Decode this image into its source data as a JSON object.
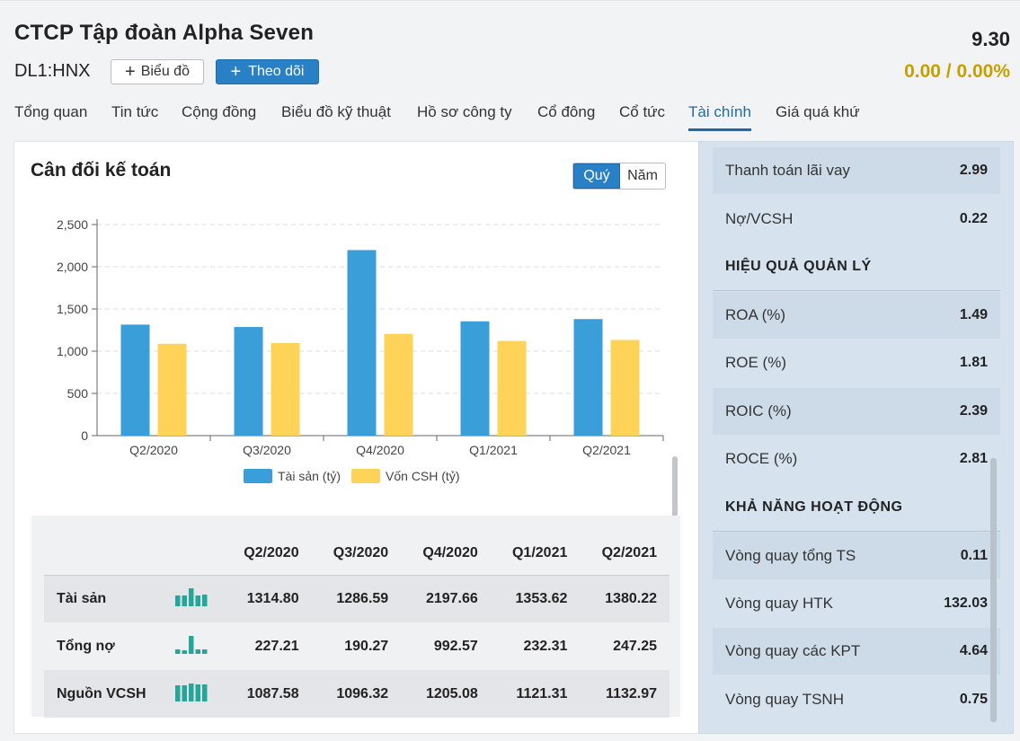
{
  "header": {
    "company": "CTCP Tập đoàn Alpha Seven",
    "ticker": "DL1:HNX",
    "price": "9.30",
    "change": "0.00 / 0.00%",
    "chart_button": "Biểu đồ",
    "follow_button": "Theo dõi"
  },
  "tabs": [
    {
      "label": "Tổng quan"
    },
    {
      "label": "Tin tức"
    },
    {
      "label": "Cộng đồng"
    },
    {
      "label": "Biểu đồ kỹ thuật"
    },
    {
      "label": "Hồ sơ công ty"
    },
    {
      "label": "Cổ đông"
    },
    {
      "label": "Cổ tức"
    },
    {
      "label": "Tài chính"
    },
    {
      "label": "Giá quá khứ"
    }
  ],
  "active_tab": "Tài chính",
  "section": {
    "title": "Cân đối kế toán",
    "toggle_quarter": "Quý",
    "toggle_year": "Năm"
  },
  "chart_data": {
    "type": "bar",
    "categories": [
      "Q2/2020",
      "Q3/2020",
      "Q4/2020",
      "Q1/2021",
      "Q2/2021"
    ],
    "series": [
      {
        "name": "Tài sản (tỷ)",
        "color": "#3a9fd9",
        "values": [
          1314.8,
          1286.59,
          2197.66,
          1353.62,
          1380.22
        ]
      },
      {
        "name": "Vốn CSH (tỷ)",
        "color": "#ffd357",
        "values": [
          1087.58,
          1096.32,
          1205.08,
          1121.31,
          1132.97
        ]
      }
    ],
    "yticks": [
      "0",
      "500",
      "1,000",
      "1,500",
      "2,000",
      "2,500"
    ],
    "ylim": [
      0,
      2500
    ],
    "grid": true,
    "legend": "bottom"
  },
  "table": {
    "columns": [
      "Q2/2020",
      "Q3/2020",
      "Q4/2020",
      "Q1/2021",
      "Q2/2021"
    ],
    "rows": [
      {
        "label": "Tài sản",
        "values": [
          "1314.80",
          "1286.59",
          "2197.66",
          "1353.62",
          "1380.22"
        ]
      },
      {
        "label": "Tổng nợ",
        "values": [
          "227.21",
          "190.27",
          "992.57",
          "232.31",
          "247.25"
        ]
      },
      {
        "label": "Nguồn VCSH",
        "values": [
          "1087.58",
          "1096.32",
          "1205.08",
          "1121.31",
          "1132.97"
        ]
      }
    ]
  },
  "ratios": {
    "top": [
      {
        "label": "Thanh toán lãi vay",
        "value": "2.99"
      },
      {
        "label": "Nợ/VCSH",
        "value": "0.22"
      }
    ],
    "mgmt_title": "HIỆU QUẢ QUẢN LÝ",
    "mgmt": [
      {
        "label": "ROA (%)",
        "value": "1.49"
      },
      {
        "label": "ROE (%)",
        "value": "1.81"
      },
      {
        "label": "ROIC (%)",
        "value": "2.39"
      },
      {
        "label": "ROCE (%)",
        "value": "2.81"
      }
    ],
    "ops_title": "KHẢ NĂNG HOẠT ĐỘNG",
    "ops": [
      {
        "label": "Vòng quay tổng TS",
        "value": "0.11"
      },
      {
        "label": "Vòng quay HTK",
        "value": "132.03"
      },
      {
        "label": "Vòng quay các KPT",
        "value": "4.64"
      },
      {
        "label": "Vòng quay TSNH",
        "value": "0.75"
      }
    ]
  }
}
